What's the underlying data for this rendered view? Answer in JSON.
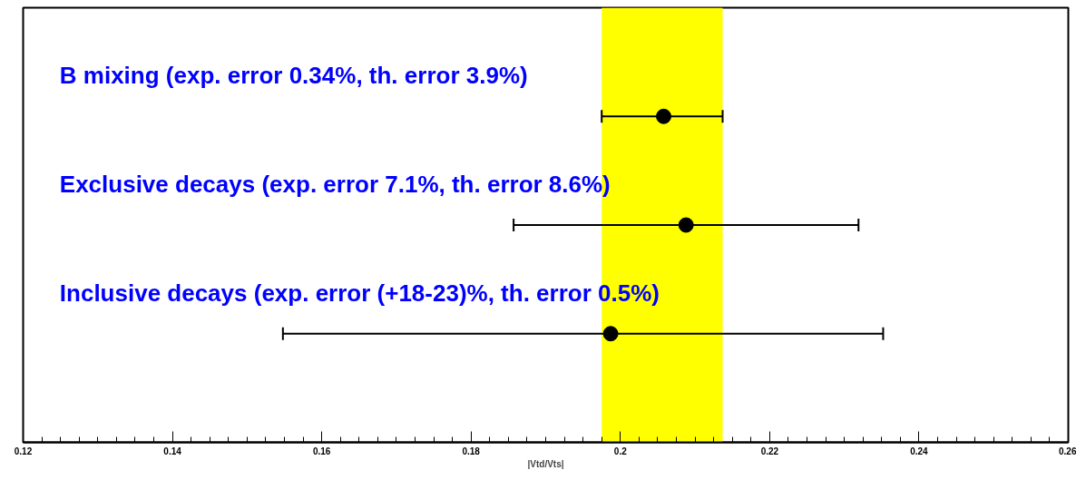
{
  "chart_data": {
    "type": "scatter",
    "orientation": "horizontal",
    "xlabel": "|Vtd/Vts|",
    "categories": [
      "B mixing (exp. error 0.34%, th. error 3.9%)",
      "Exclusive decays (exp. error 7.1%, th. error 8.6%)",
      "Inclusive decays (exp. error (+18-23)%, th. error 0.5%)"
    ],
    "series": [
      {
        "color": "#000000",
        "values": [
          0.2058,
          0.2088,
          0.1987
        ],
        "errors": [
          [
            0.1975,
            0.2137
          ],
          [
            0.1857,
            0.2319
          ],
          [
            0.1548,
            0.2352
          ]
        ]
      }
    ],
    "xlim": [
      0.12,
      0.26
    ],
    "xticks": [
      0.12,
      0.14,
      0.16,
      0.18,
      {
        "value": 0.2,
        "label": "0.2"
      },
      0.22,
      0.24,
      0.26
    ],
    "bands": [
      {
        "axis": "x",
        "from": 0.1975,
        "to": 0.2137,
        "color": "#ffff00"
      }
    ],
    "grid": false,
    "marker": "circle",
    "tick_labels": "x"
  }
}
